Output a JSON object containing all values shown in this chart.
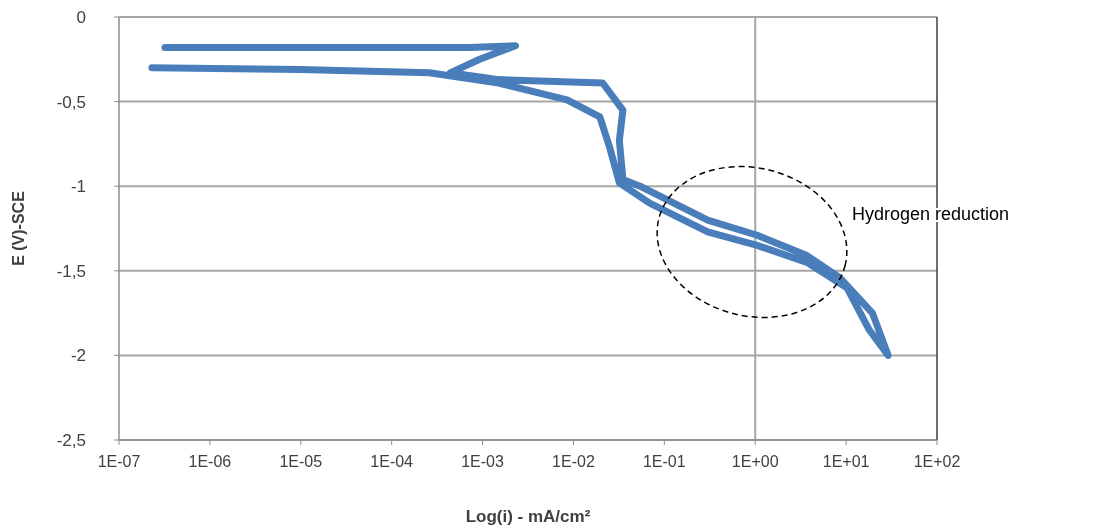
{
  "chart_data": {
    "type": "line",
    "xlabel": "Log(i) - mA/cm²",
    "ylabel": "E (V)-SCE",
    "log": "x",
    "grid": "y",
    "marker": "none",
    "line_style": "solid",
    "xlim": [
      1e-07,
      100
    ],
    "ylim": [
      -2.5,
      0
    ],
    "xticks": [
      {
        "value": 1e-07,
        "label": "1E-07"
      },
      {
        "value": 1e-06,
        "label": "1E-06"
      },
      {
        "value": 1e-05,
        "label": "1E-05"
      },
      {
        "value": 0.0001,
        "label": "1E-04"
      },
      {
        "value": 0.001,
        "label": "1E-03"
      },
      {
        "value": 0.01,
        "label": "1E-02"
      },
      {
        "value": 0.1,
        "label": "1E-01"
      },
      {
        "value": 1,
        "label": "1E+00"
      },
      {
        "value": 10,
        "label": "1E+01"
      },
      {
        "value": 100,
        "label": "1E+02"
      }
    ],
    "yticks": [
      0,
      {
        "value": -0.5,
        "label": "-0,5"
      },
      -1,
      {
        "value": -1.5,
        "label": "-1,5"
      },
      -2,
      {
        "value": -2.5,
        "label": "-2,5"
      }
    ],
    "ref_lines": [
      {
        "axis": "x",
        "value": 1,
        "color": "#a6a6a6"
      }
    ],
    "annotations": [
      "Hydrogen reduction"
    ],
    "series": [
      {
        "color": "#4a7ebb",
        "x": [
          2.3e-07,
          9.8e-06,
          0.00026,
          0.0015,
          0.0085,
          0.0195,
          0.025,
          0.032,
          0.069,
          0.3,
          1.05,
          3.7,
          10.2,
          18,
          29,
          19.5,
          8.5,
          3.7,
          1.05,
          0.3,
          0.054,
          0.035,
          0.032,
          0.035,
          0.021,
          0.0015,
          0.00044,
          0.00093,
          0.0023,
          0.00072,
          9.8e-06,
          3.2e-07
        ],
        "values": [
          -0.3,
          -0.31,
          -0.33,
          -0.39,
          -0.49,
          -0.59,
          -0.77,
          -0.98,
          -1.1,
          -1.27,
          -1.35,
          -1.45,
          -1.6,
          -1.85,
          -2.0,
          -1.75,
          -1.54,
          -1.41,
          -1.29,
          -1.2,
          -1.0,
          -0.96,
          -0.73,
          -0.55,
          -0.39,
          -0.37,
          -0.33,
          -0.25,
          -0.17,
          -0.18,
          -0.18,
          -0.18
        ]
      }
    ]
  }
}
